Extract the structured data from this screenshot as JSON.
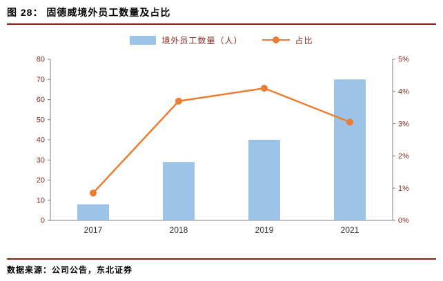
{
  "header": {
    "title": "图  28：  固德威境外员工数量及占比"
  },
  "legend": [
    {
      "label": "境外员工数量（人）",
      "swatch": "bar-swatch"
    },
    {
      "label": "占比",
      "swatch": "line-swatch"
    }
  ],
  "footer": {
    "source": "数据来源：公司公告，东北证券"
  },
  "colors": {
    "bar": "#9DC3E6",
    "line": "#ED7D31",
    "rule": "#8B1D15",
    "axis_text": "#8B2A21",
    "axis_line": "#7F7F7F",
    "category_text": "#333333"
  },
  "chart_data": {
    "type": "bar",
    "subtype": "bar+line combo",
    "title": "固德威境外员工数量及占比",
    "categories": [
      "2017",
      "2018",
      "2019",
      "2021"
    ],
    "series": [
      {
        "name": "境外员工数量（人）",
        "type": "bar",
        "axis": "left",
        "values": [
          8,
          29,
          40,
          70
        ]
      },
      {
        "name": "占比",
        "type": "line",
        "axis": "right",
        "values": [
          0.85,
          3.7,
          4.1,
          3.05
        ]
      }
    ],
    "left_axis": {
      "min": 0,
      "max": 80,
      "tick_values": [
        0,
        10,
        20,
        30,
        40,
        50,
        60,
        70,
        80
      ],
      "tick_labels": [
        "0",
        "10",
        "20",
        "30",
        "40",
        "50",
        "60",
        "70",
        "80"
      ]
    },
    "right_axis": {
      "min": 0,
      "max": 5,
      "tick_values": [
        0,
        1,
        2,
        3,
        4,
        5
      ],
      "tick_labels": [
        "0%",
        "1%",
        "2%",
        "3%",
        "4%",
        "5%"
      ]
    },
    "grid": false,
    "legend_position": "top-center"
  }
}
